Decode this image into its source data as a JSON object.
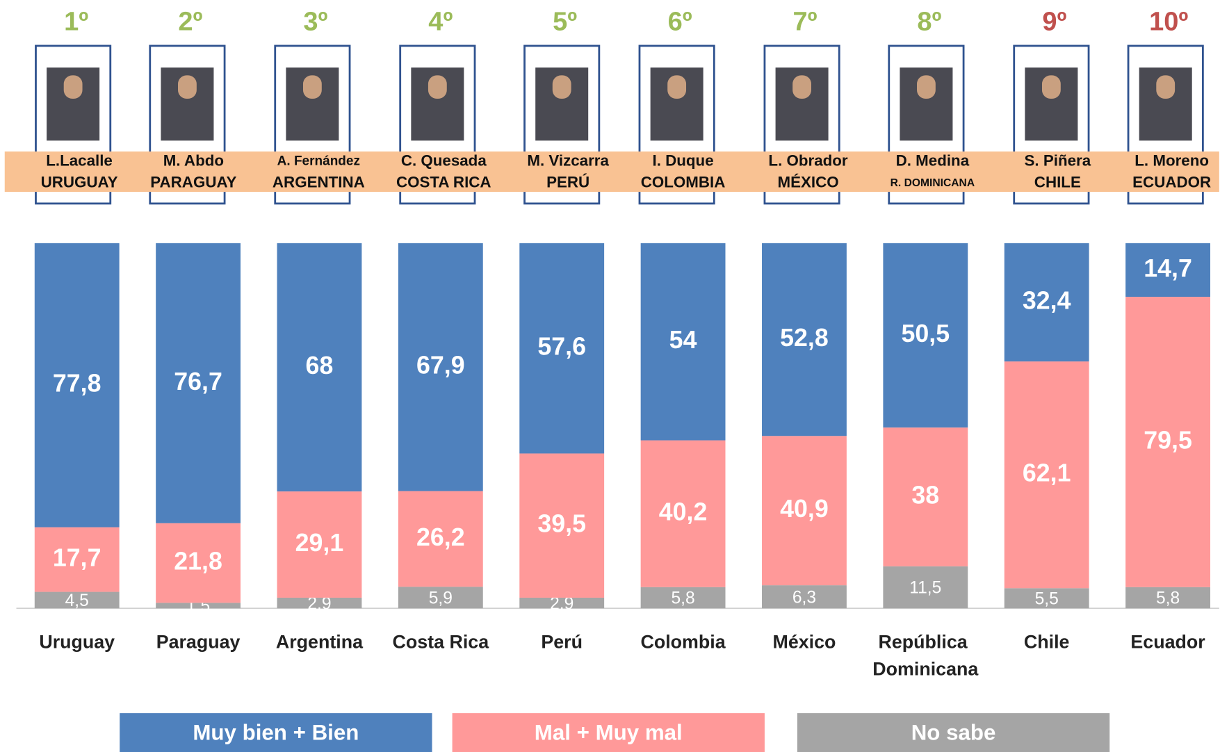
{
  "chart_data": {
    "type": "stacked_bar",
    "ranks": [
      "1º",
      "2º",
      "3º",
      "4º",
      "5º",
      "6º",
      "7º",
      "8º",
      "9º",
      "10º"
    ],
    "rank_colors": [
      "#9bbb59",
      "#9bbb59",
      "#9bbb59",
      "#9bbb59",
      "#9bbb59",
      "#9bbb59",
      "#9bbb59",
      "#9bbb59",
      "#c0504d",
      "#c0504d"
    ],
    "leaders": [
      "L.Lacalle",
      "M. Abdo",
      "A. Fernández",
      "C. Quesada",
      "M. Vizcarra",
      "I. Duque",
      "L. Obrador",
      "D. Medina",
      "S. Piñera",
      "L. Moreno"
    ],
    "leader_countries": [
      "URUGUAY",
      "PARAGUAY",
      "ARGENTINA",
      "COSTA RICA",
      "PERÚ",
      "COLOMBIA",
      "MÉXICO",
      "R. DOMINICANA",
      "CHILE",
      "ECUADOR"
    ],
    "categories": [
      "Uruguay",
      "Paraguay",
      "Argentina",
      "Costa Rica",
      "Perú",
      "Colombia",
      "México",
      "República Dominicana",
      "Chile",
      "Ecuador"
    ],
    "series": [
      {
        "name": "No sabe",
        "color": "#a5a5a5",
        "values": [
          4.5,
          1.5,
          2.9,
          5.9,
          2.9,
          5.8,
          6.3,
          11.5,
          5.5,
          5.8
        ],
        "value_labels": [
          "4,5",
          "1,5",
          "2,9",
          "5,9",
          "2,9",
          "5,8",
          "6,3",
          "11,5",
          "5,5",
          "5,8"
        ]
      },
      {
        "name": "Mal + Muy mal",
        "color": "#ff9999",
        "values": [
          17.7,
          21.8,
          29.1,
          26.2,
          39.5,
          40.2,
          40.9,
          38,
          62.1,
          79.5
        ],
        "value_labels": [
          "17,7",
          "21,8",
          "29,1",
          "26,2",
          "39,5",
          "40,2",
          "40,9",
          "38",
          "62,1",
          "79,5"
        ]
      },
      {
        "name": "Muy bien + Bien",
        "color": "#4f81bd",
        "values": [
          77.8,
          76.7,
          68,
          67.9,
          57.6,
          54,
          52.8,
          50.5,
          32.4,
          14.7
        ],
        "value_labels": [
          "77,8",
          "76,7",
          "68",
          "67,9",
          "57,6",
          "54",
          "52,8",
          "50,5",
          "32,4",
          "14,7"
        ]
      }
    ],
    "legend_order": [
      2,
      1,
      0
    ],
    "ylim": [
      0,
      100
    ]
  }
}
